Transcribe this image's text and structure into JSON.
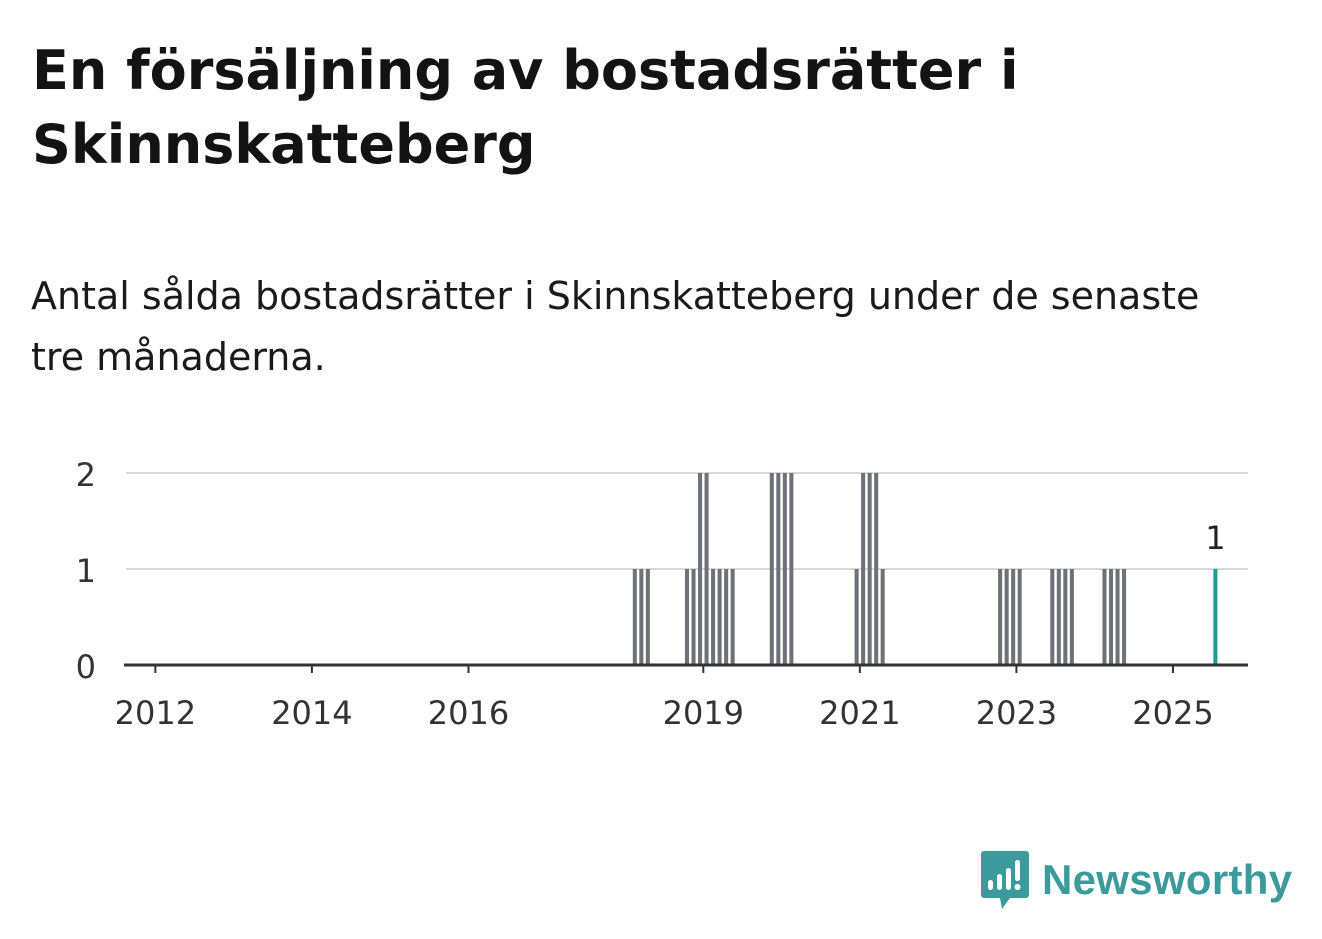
{
  "title": "En försäljning av bostadsrätter i Skinnskatteberg",
  "subtitle": "Antal sålda bostadsrätter i Skinnskatteberg under de senaste tre månaderna.",
  "brand": {
    "name": "Newsworthy",
    "color": "#3b9a9c",
    "icon": "newsworthy-logo-icon"
  },
  "colors": {
    "bar": "#707079",
    "highlight": "#1a9e96",
    "grid": "#d9d9d9",
    "axis": "#333333"
  },
  "chart_data": {
    "type": "bar",
    "title": "",
    "xlabel": "",
    "ylabel": "",
    "ylim": [
      0,
      2
    ],
    "yticks": [
      0,
      1,
      2
    ],
    "xlim": [
      "2011-08",
      "2025-12"
    ],
    "xticks": [
      "2012",
      "2014",
      "2016",
      "2019",
      "2021",
      "2023",
      "2025"
    ],
    "grid": true,
    "series": [
      {
        "points": [
          {
            "x": "2018-02",
            "y": 1
          },
          {
            "x": "2018-03",
            "y": 1
          },
          {
            "x": "2018-04",
            "y": 1
          },
          {
            "x": "2018-10",
            "y": 1
          },
          {
            "x": "2018-11",
            "y": 1
          },
          {
            "x": "2018-12",
            "y": 2
          },
          {
            "x": "2019-01",
            "y": 2
          },
          {
            "x": "2019-02",
            "y": 1
          },
          {
            "x": "2019-03",
            "y": 1
          },
          {
            "x": "2019-04",
            "y": 1
          },
          {
            "x": "2019-05",
            "y": 1
          },
          {
            "x": "2019-11",
            "y": 2
          },
          {
            "x": "2019-12",
            "y": 2
          },
          {
            "x": "2020-01",
            "y": 2
          },
          {
            "x": "2020-02",
            "y": 2
          },
          {
            "x": "2020-12",
            "y": 1
          },
          {
            "x": "2021-01",
            "y": 2
          },
          {
            "x": "2021-02",
            "y": 2
          },
          {
            "x": "2021-03",
            "y": 2
          },
          {
            "x": "2021-04",
            "y": 1
          },
          {
            "x": "2022-10",
            "y": 1
          },
          {
            "x": "2022-11",
            "y": 1
          },
          {
            "x": "2022-12",
            "y": 1
          },
          {
            "x": "2023-01",
            "y": 1
          },
          {
            "x": "2023-06",
            "y": 1
          },
          {
            "x": "2023-07",
            "y": 1
          },
          {
            "x": "2023-08",
            "y": 1
          },
          {
            "x": "2023-09",
            "y": 1
          },
          {
            "x": "2024-02",
            "y": 1
          },
          {
            "x": "2024-03",
            "y": 1
          },
          {
            "x": "2024-04",
            "y": 1
          },
          {
            "x": "2024-05",
            "y": 1
          }
        ]
      }
    ],
    "highlight": {
      "x": "2025-07",
      "y": 1,
      "label": "1"
    }
  }
}
